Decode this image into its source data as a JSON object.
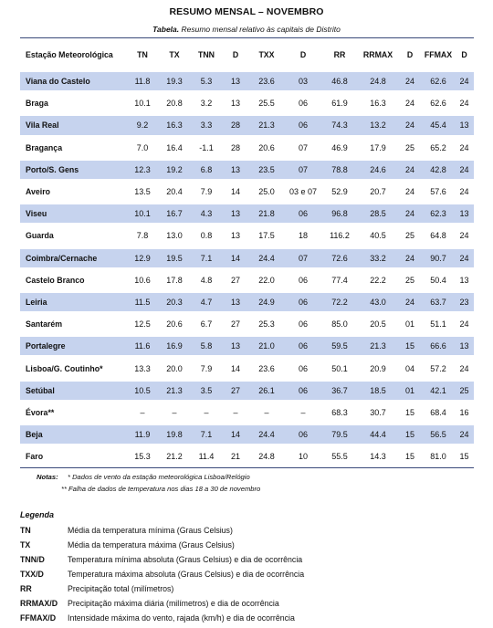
{
  "title": "RESUMO MENSAL – NOVEMBRO",
  "caption": {
    "label": "Tabela.",
    "text": " Resumo mensal relativo às capitais de Distrito"
  },
  "columns": [
    "Estação Meteorológica",
    "TN",
    "TX",
    "TNN",
    "D",
    "TXX",
    "D",
    "RR",
    "RRMAX",
    "D",
    "FFMAX",
    "D"
  ],
  "rows": [
    [
      "Viana do Castelo",
      "11.8",
      "19.3",
      "5.3",
      "13",
      "23.6",
      "03",
      "46.8",
      "24.8",
      "24",
      "62.6",
      "24"
    ],
    [
      "Braga",
      "10.1",
      "20.8",
      "3.2",
      "13",
      "25.5",
      "06",
      "61.9",
      "16.3",
      "24",
      "62.6",
      "24"
    ],
    [
      "Vila Real",
      "9.2",
      "16.3",
      "3.3",
      "28",
      "21.3",
      "06",
      "74.3",
      "13.2",
      "24",
      "45.4",
      "13"
    ],
    [
      "Bragança",
      "7.0",
      "16.4",
      "-1.1",
      "28",
      "20.6",
      "07",
      "46.9",
      "17.9",
      "25",
      "65.2",
      "24"
    ],
    [
      "Porto/S. Gens",
      "12.3",
      "19.2",
      "6.8",
      "13",
      "23.5",
      "07",
      "78.8",
      "24.6",
      "24",
      "42.8",
      "24"
    ],
    [
      "Aveiro",
      "13.5",
      "20.4",
      "7.9",
      "14",
      "25.0",
      "03 e 07",
      "52.9",
      "20.7",
      "24",
      "57.6",
      "24"
    ],
    [
      "Viseu",
      "10.1",
      "16.7",
      "4.3",
      "13",
      "21.8",
      "06",
      "96.8",
      "28.5",
      "24",
      "62.3",
      "13"
    ],
    [
      "Guarda",
      "7.8",
      "13.0",
      "0.8",
      "13",
      "17.5",
      "18",
      "116.2",
      "40.5",
      "25",
      "64.8",
      "24"
    ],
    [
      "Coimbra/Cernache",
      "12.9",
      "19.5",
      "7.1",
      "14",
      "24.4",
      "07",
      "72.6",
      "33.2",
      "24",
      "90.7",
      "24"
    ],
    [
      "Castelo Branco",
      "10.6",
      "17.8",
      "4.8",
      "27",
      "22.0",
      "06",
      "77.4",
      "22.2",
      "25",
      "50.4",
      "13"
    ],
    [
      "Leiria",
      "11.5",
      "20.3",
      "4.7",
      "13",
      "24.9",
      "06",
      "72.2",
      "43.0",
      "24",
      "63.7",
      "23"
    ],
    [
      "Santarém",
      "12.5",
      "20.6",
      "6.7",
      "27",
      "25.3",
      "06",
      "85.0",
      "20.5",
      "01",
      "51.1",
      "24"
    ],
    [
      "Portalegre",
      "11.6",
      "16.9",
      "5.8",
      "13",
      "21.0",
      "06",
      "59.5",
      "21.3",
      "15",
      "66.6",
      "13"
    ],
    [
      "Lisboa/G. Coutinho*",
      "13.3",
      "20.0",
      "7.9",
      "14",
      "23.6",
      "06",
      "50.1",
      "20.9",
      "04",
      "57.2",
      "24"
    ],
    [
      "Setúbal",
      "10.5",
      "21.3",
      "3.5",
      "27",
      "26.1",
      "06",
      "36.7",
      "18.5",
      "01",
      "42.1",
      "25"
    ],
    [
      "Évora**",
      "–",
      "–",
      "–",
      "–",
      "–",
      "–",
      "68.3",
      "30.7",
      "15",
      "68.4",
      "16"
    ],
    [
      "Beja",
      "11.9",
      "19.8",
      "7.1",
      "14",
      "24.4",
      "06",
      "79.5",
      "44.4",
      "15",
      "56.5",
      "24"
    ],
    [
      "Faro",
      "15.3",
      "21.2",
      "11.4",
      "21",
      "24.8",
      "10",
      "55.5",
      "14.3",
      "15",
      "81.0",
      "15"
    ]
  ],
  "notes": {
    "label": "Notas:",
    "items": [
      "* Dados de vento da estação meteorológica Lisboa/Relógio",
      "** Falha de dados de temperatura nos dias 18 a 30 de novembro"
    ]
  },
  "legend": {
    "title": "Legenda",
    "items": [
      {
        "key": "TN",
        "text": "Média da temperatura mínima (Graus Celsius)"
      },
      {
        "key": "TX",
        "text": "Média da temperatura máxima (Graus Celsius)"
      },
      {
        "key": "TNN/D",
        "text": "Temperatura mínima absoluta (Graus Celsius) e dia de ocorrência"
      },
      {
        "key": "TXX/D",
        "text": "Temperatura máxima absoluta (Graus Celsius) e dia de ocorrência"
      },
      {
        "key": "RR",
        "text": "Precipitação total (milímetros)"
      },
      {
        "key": "RRMAX/D",
        "text": "Precipitação máxima diária (milímetros) e dia de ocorrência"
      },
      {
        "key": "FFMAX/D",
        "text": "Intensidade máxima do vento, rajada (km/h) e dia de ocorrência"
      }
    ]
  },
  "colors": {
    "band": "#c6d3ee",
    "rule": "#3a4a7a"
  }
}
